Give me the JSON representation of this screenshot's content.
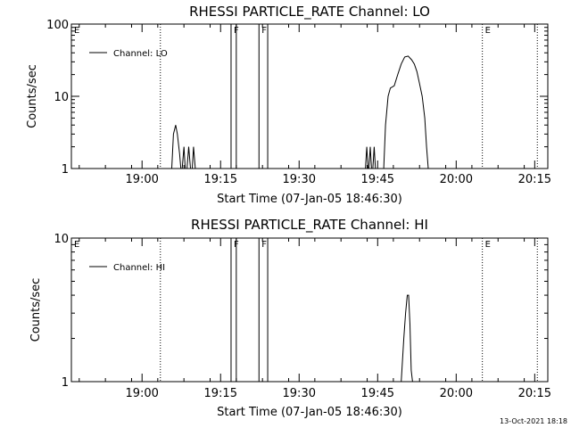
{
  "footer": {
    "timestamp": "13-Oct-2021 18:18"
  },
  "chart_data": [
    {
      "type": "line",
      "title": "RHESSI PARTICLE_RATE Channel: LO",
      "xlabel": "Start Time (07-Jan-05 18:46:30)",
      "ylabel": "Counts/sec",
      "yscale": "log",
      "ylim": [
        1,
        100
      ],
      "xlim": [
        0,
        5460
      ],
      "x_unit": "seconds since 07-Jan-05 18:46:30",
      "yticks": [
        {
          "value": 1,
          "label": "1"
        },
        {
          "value": 10,
          "label": "10"
        },
        {
          "value": 100,
          "label": "100"
        }
      ],
      "xticks": [
        {
          "value": 810,
          "label": "19:00"
        },
        {
          "value": 1710,
          "label": "19:15"
        },
        {
          "value": 2610,
          "label": "19:30"
        },
        {
          "value": 3510,
          "label": "19:45"
        },
        {
          "value": 4410,
          "label": "20:00"
        },
        {
          "value": 5310,
          "label": "20:15"
        }
      ],
      "grid": false,
      "legend": {
        "position": "top-left",
        "entries": [
          "Channel: LO"
        ]
      },
      "series": [
        {
          "name": "Channel: LO",
          "color": "#000000",
          "points": [
            [
              0,
              1
            ],
            [
              1150,
              1
            ],
            [
              1170,
              3
            ],
            [
              1195,
              4
            ],
            [
              1215,
              3
            ],
            [
              1240,
              1.6
            ],
            [
              1255,
              1
            ],
            [
              1270,
              1
            ],
            [
              1290,
              2
            ],
            [
              1305,
              1
            ],
            [
              1325,
              1
            ],
            [
              1345,
              2
            ],
            [
              1365,
              1
            ],
            [
              1385,
              1
            ],
            [
              1400,
              2
            ],
            [
              1420,
              1
            ],
            [
              3370,
              1
            ],
            [
              3385,
              2
            ],
            [
              3400,
              1
            ],
            [
              3410,
              1
            ],
            [
              3425,
              2
            ],
            [
              3440,
              1
            ],
            [
              3455,
              1
            ],
            [
              3470,
              2
            ],
            [
              3485,
              1
            ],
            [
              3580,
              1
            ],
            [
              3600,
              4
            ],
            [
              3630,
              10
            ],
            [
              3655,
              13
            ],
            [
              3700,
              14
            ],
            [
              3740,
              20
            ],
            [
              3780,
              28
            ],
            [
              3820,
              35
            ],
            [
              3860,
              36
            ],
            [
              3900,
              32
            ],
            [
              3930,
              28
            ],
            [
              3960,
              22
            ],
            [
              3990,
              15
            ],
            [
              4020,
              10
            ],
            [
              4050,
              5
            ],
            [
              4070,
              2
            ],
            [
              4090,
              1
            ],
            [
              5460,
              1
            ]
          ]
        }
      ],
      "annotations": [
        {
          "label": "E",
          "x": 0,
          "style": "dotted"
        },
        {
          "label": "",
          "x": 1020,
          "style": "dotted"
        },
        {
          "label": "F",
          "x": 1830,
          "style": "solid"
        },
        {
          "label": "",
          "x": 1890,
          "style": "solid"
        },
        {
          "label": "F",
          "x": 2150,
          "style": "solid"
        },
        {
          "label": "",
          "x": 2250,
          "style": "solid"
        },
        {
          "label": "E",
          "x": 4710,
          "style": "dotted"
        },
        {
          "label": "",
          "x": 5340,
          "style": "dotted"
        }
      ]
    },
    {
      "type": "line",
      "title": "RHESSI PARTICLE_RATE Channel: HI",
      "xlabel": "Start Time (07-Jan-05 18:46:30)",
      "ylabel": "Counts/sec",
      "yscale": "log",
      "ylim": [
        1,
        10
      ],
      "xlim": [
        0,
        5460
      ],
      "x_unit": "seconds since 07-Jan-05 18:46:30",
      "yticks": [
        {
          "value": 1,
          "label": "1"
        },
        {
          "value": 10,
          "label": "10"
        }
      ],
      "xticks": [
        {
          "value": 810,
          "label": "19:00"
        },
        {
          "value": 1710,
          "label": "19:15"
        },
        {
          "value": 2610,
          "label": "19:30"
        },
        {
          "value": 3510,
          "label": "19:45"
        },
        {
          "value": 4410,
          "label": "20:00"
        },
        {
          "value": 5310,
          "label": "20:15"
        }
      ],
      "grid": false,
      "legend": {
        "position": "top-left",
        "entries": [
          "Channel: HI"
        ]
      },
      "series": [
        {
          "name": "Channel: HI",
          "color": "#000000",
          "points": [
            [
              0,
              1
            ],
            [
              3780,
              1
            ],
            [
              3810,
              2
            ],
            [
              3830,
              3
            ],
            [
              3850,
              4
            ],
            [
              3865,
              4
            ],
            [
              3880,
              2.5
            ],
            [
              3895,
              1.2
            ],
            [
              3910,
              1
            ],
            [
              5460,
              1
            ]
          ]
        }
      ],
      "annotations": [
        {
          "label": "E",
          "x": 0,
          "style": "dotted"
        },
        {
          "label": "",
          "x": 1020,
          "style": "dotted"
        },
        {
          "label": "F",
          "x": 1830,
          "style": "solid"
        },
        {
          "label": "",
          "x": 1890,
          "style": "solid"
        },
        {
          "label": "F",
          "x": 2150,
          "style": "solid"
        },
        {
          "label": "",
          "x": 2250,
          "style": "solid"
        },
        {
          "label": "E",
          "x": 4710,
          "style": "dotted"
        },
        {
          "label": "",
          "x": 5340,
          "style": "dotted"
        }
      ]
    }
  ]
}
